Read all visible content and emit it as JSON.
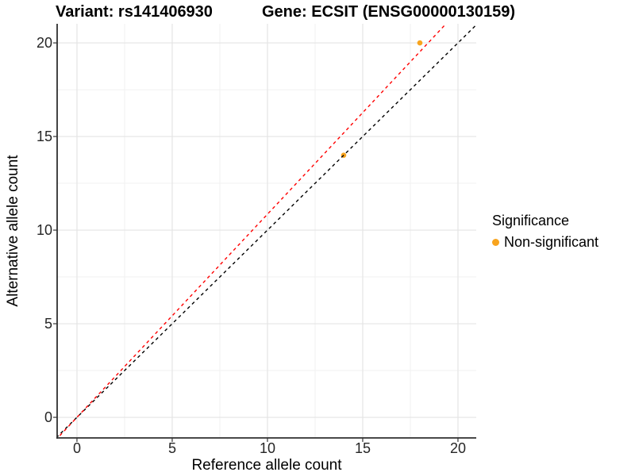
{
  "chart_data": {
    "type": "scatter",
    "titles": {
      "left": "Variant: rs141406930",
      "right": "Gene: ECSIT (ENSG00000130159)"
    },
    "xlabel": "Reference allele count",
    "ylabel": "Alternative allele count",
    "xlim": [
      -1.04,
      20.96
    ],
    "ylim": [
      -1.1,
      21.02
    ],
    "x_ticks": [
      0,
      5,
      10,
      15,
      20
    ],
    "y_ticks": [
      0,
      5,
      10,
      15,
      20
    ],
    "x_minor_ticks": [
      2.5,
      7.5,
      12.5,
      17.5
    ],
    "y_minor_ticks": [
      2.5,
      7.5,
      12.5,
      17.5
    ],
    "grid": {
      "major_color": "#E4E4E4",
      "minor_color": "#F1F1F1",
      "on": true
    },
    "points": [
      {
        "x": 14,
        "y": 14,
        "series": "Non-significant"
      },
      {
        "x": 18,
        "y": 20,
        "series": "Non-significant"
      }
    ],
    "point_color": "#F8A41E",
    "point_radius": 3.3,
    "lines": [
      {
        "name": "identity-line",
        "slope": 1,
        "intercept": 0,
        "color": "#000000",
        "dash": "4 4",
        "width": 1.4
      },
      {
        "name": "fit-line",
        "slope": 1.085,
        "intercept": 0,
        "color": "#FF0000",
        "dash": "4 4",
        "width": 1.4
      }
    ],
    "axis_line_color": "#2F2F2F",
    "tick_mark_color": "#333333",
    "legend": {
      "position": "right",
      "title": "Significance",
      "items": [
        {
          "label": "Non-significant",
          "color": "#F8A41E"
        }
      ]
    }
  }
}
